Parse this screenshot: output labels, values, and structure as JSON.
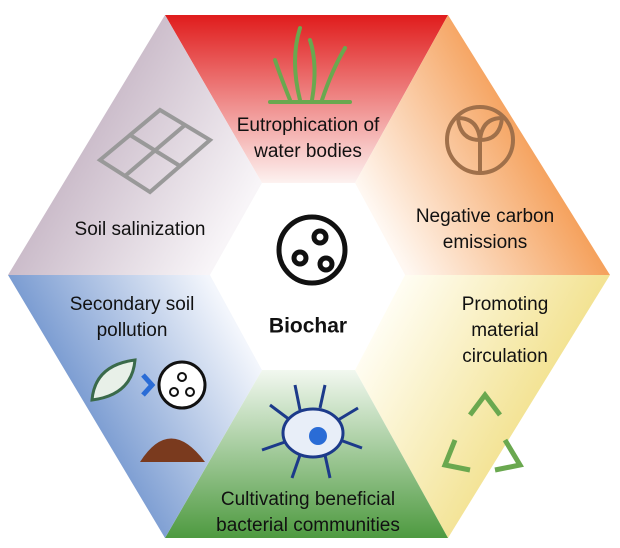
{
  "center": {
    "label": "Biochar"
  },
  "segments": [
    {
      "lines": [
        "Eutrophication of",
        "water bodies"
      ]
    },
    {
      "lines": [
        "Negative carbon",
        "emissions"
      ]
    },
    {
      "lines": [
        "Promoting",
        "material",
        "circulation"
      ]
    },
    {
      "lines": [
        "Cultivating beneficial",
        "bacterial communities"
      ]
    },
    {
      "lines": [
        "Secondary soil",
        "pollution"
      ]
    },
    {
      "lines": [
        "Soil salinization"
      ]
    }
  ]
}
